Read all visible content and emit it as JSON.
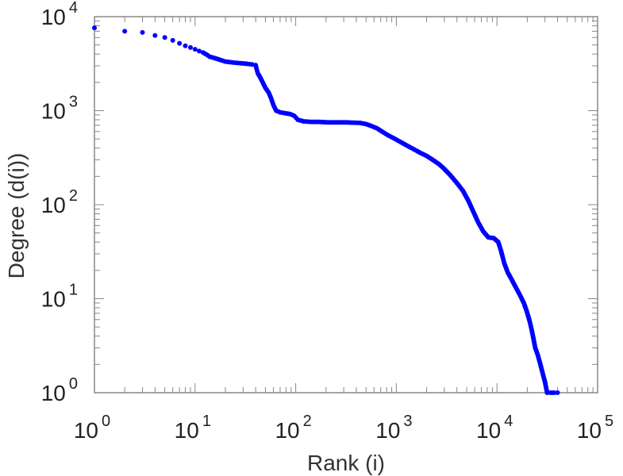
{
  "chart_data": {
    "type": "scatter",
    "title": "",
    "xlabel": "Rank (i)",
    "ylabel": "Degree (d(i))",
    "xscale": "log",
    "yscale": "log",
    "xlim": [
      1,
      100000
    ],
    "ylim": [
      1,
      10000
    ],
    "grid": false,
    "legend": "none",
    "marker_color": "#0000ff",
    "x_ticks": [
      {
        "base": "10",
        "exp": "0",
        "value": 1
      },
      {
        "base": "10",
        "exp": "1",
        "value": 10
      },
      {
        "base": "10",
        "exp": "2",
        "value": 100
      },
      {
        "base": "10",
        "exp": "3",
        "value": 1000
      },
      {
        "base": "10",
        "exp": "4",
        "value": 10000
      },
      {
        "base": "10",
        "exp": "5",
        "value": 100000
      }
    ],
    "y_ticks": [
      {
        "base": "10",
        "exp": "0",
        "value": 1
      },
      {
        "base": "10",
        "exp": "1",
        "value": 10
      },
      {
        "base": "10",
        "exp": "2",
        "value": 100
      },
      {
        "base": "10",
        "exp": "3",
        "value": 1000
      },
      {
        "base": "10",
        "exp": "4",
        "value": 10000
      }
    ],
    "series": [
      {
        "points": [
          [
            1,
            7600
          ],
          [
            2,
            7000
          ],
          [
            3,
            6800
          ],
          [
            4,
            6300
          ],
          [
            5,
            6000
          ],
          [
            6,
            5600
          ],
          [
            7,
            5200
          ],
          [
            8,
            4900
          ],
          [
            9,
            4700
          ],
          [
            10,
            4500
          ],
          [
            11,
            4300
          ],
          [
            12,
            4150
          ],
          [
            13,
            3950
          ],
          [
            14,
            3750
          ],
          [
            16,
            3600
          ],
          [
            18,
            3450
          ],
          [
            20,
            3330
          ],
          [
            24,
            3250
          ],
          [
            28,
            3200
          ],
          [
            33,
            3150
          ],
          [
            37,
            3100
          ],
          [
            40,
            3050
          ],
          [
            40.8,
            2800
          ],
          [
            42,
            2500
          ],
          [
            44,
            2300
          ],
          [
            47,
            2000
          ],
          [
            50,
            1750
          ],
          [
            54,
            1550
          ],
          [
            57,
            1350
          ],
          [
            60,
            1150
          ],
          [
            64,
            1000
          ],
          [
            70,
            960
          ],
          [
            78,
            940
          ],
          [
            88,
            920
          ],
          [
            97,
            880
          ],
          [
            105,
            800
          ],
          [
            120,
            770
          ],
          [
            140,
            760
          ],
          [
            170,
            760
          ],
          [
            210,
            750
          ],
          [
            260,
            750
          ],
          [
            320,
            750
          ],
          [
            380,
            745
          ],
          [
            440,
            740
          ],
          [
            500,
            720
          ],
          [
            560,
            690
          ],
          [
            640,
            650
          ],
          [
            720,
            600
          ],
          [
            820,
            550
          ],
          [
            940,
            510
          ],
          [
            1080,
            470
          ],
          [
            1250,
            430
          ],
          [
            1450,
            395
          ],
          [
            1700,
            360
          ],
          [
            2000,
            330
          ],
          [
            2300,
            300
          ],
          [
            2650,
            270
          ],
          [
            3000,
            240
          ],
          [
            3450,
            205
          ],
          [
            4000,
            170
          ],
          [
            4600,
            140
          ],
          [
            5200,
            110
          ],
          [
            5800,
            85
          ],
          [
            6500,
            65
          ],
          [
            7300,
            52
          ],
          [
            8200,
            45
          ],
          [
            9300,
            44
          ],
          [
            10300,
            40
          ],
          [
            11000,
            32
          ],
          [
            11800,
            24
          ],
          [
            12800,
            19
          ],
          [
            14000,
            16
          ],
          [
            15500,
            13
          ],
          [
            17000,
            10.8
          ],
          [
            18500,
            9
          ],
          [
            19800,
            7.3
          ],
          [
            21000,
            5.9
          ],
          [
            22000,
            4.8
          ],
          [
            23000,
            3.8
          ],
          [
            24000,
            3.0
          ],
          [
            25500,
            2.5
          ],
          [
            27000,
            2.0
          ],
          [
            28500,
            1.6
          ],
          [
            30000,
            1.3
          ],
          [
            31500,
            1.0
          ],
          [
            34000,
            1.0
          ],
          [
            37000,
            1.0
          ],
          [
            40000,
            1.0
          ]
        ]
      }
    ]
  }
}
